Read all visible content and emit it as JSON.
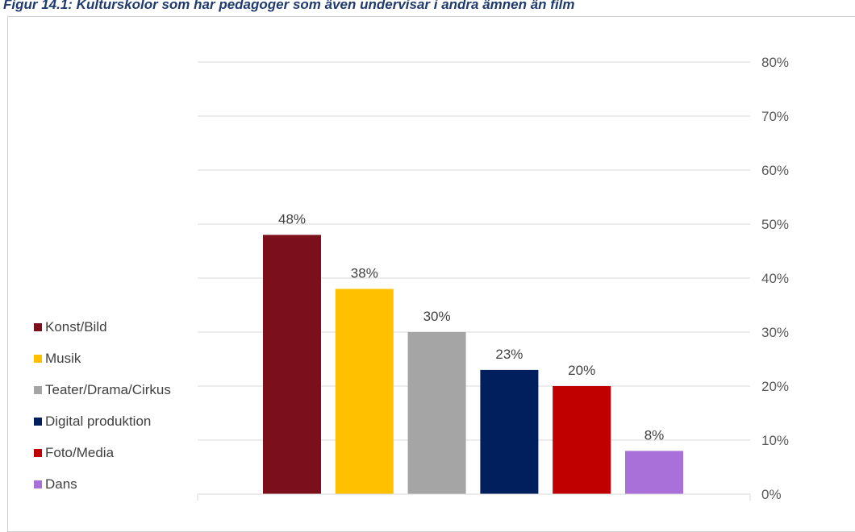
{
  "title": "Figur 14.1: Kulturskolor som har pedagoger som även undervisar i andra ämnen än film",
  "chart_data": {
    "type": "bar",
    "categories": [
      "Konst/Bild",
      "Musik",
      "Teater/Drama/Cirkus",
      "Digital produktion",
      "Foto/Media",
      "Dans"
    ],
    "values": [
      48,
      38,
      30,
      23,
      20,
      8
    ],
    "data_labels": [
      "48%",
      "38%",
      "30%",
      "23%",
      "20%",
      "8%"
    ],
    "colors": [
      "#7b0f1b",
      "#ffc000",
      "#a5a5a5",
      "#001f5c",
      "#c00000",
      "#a970d9"
    ],
    "ylim": [
      0,
      80
    ],
    "yticks": [
      0,
      10,
      20,
      30,
      40,
      50,
      60,
      70,
      80
    ],
    "ytick_labels": [
      "0%",
      "10%",
      "20%",
      "30%",
      "40%",
      "50%",
      "60%",
      "70%",
      "80%"
    ],
    "y_axis_side": "right",
    "grid": true,
    "legend_position": "left"
  }
}
